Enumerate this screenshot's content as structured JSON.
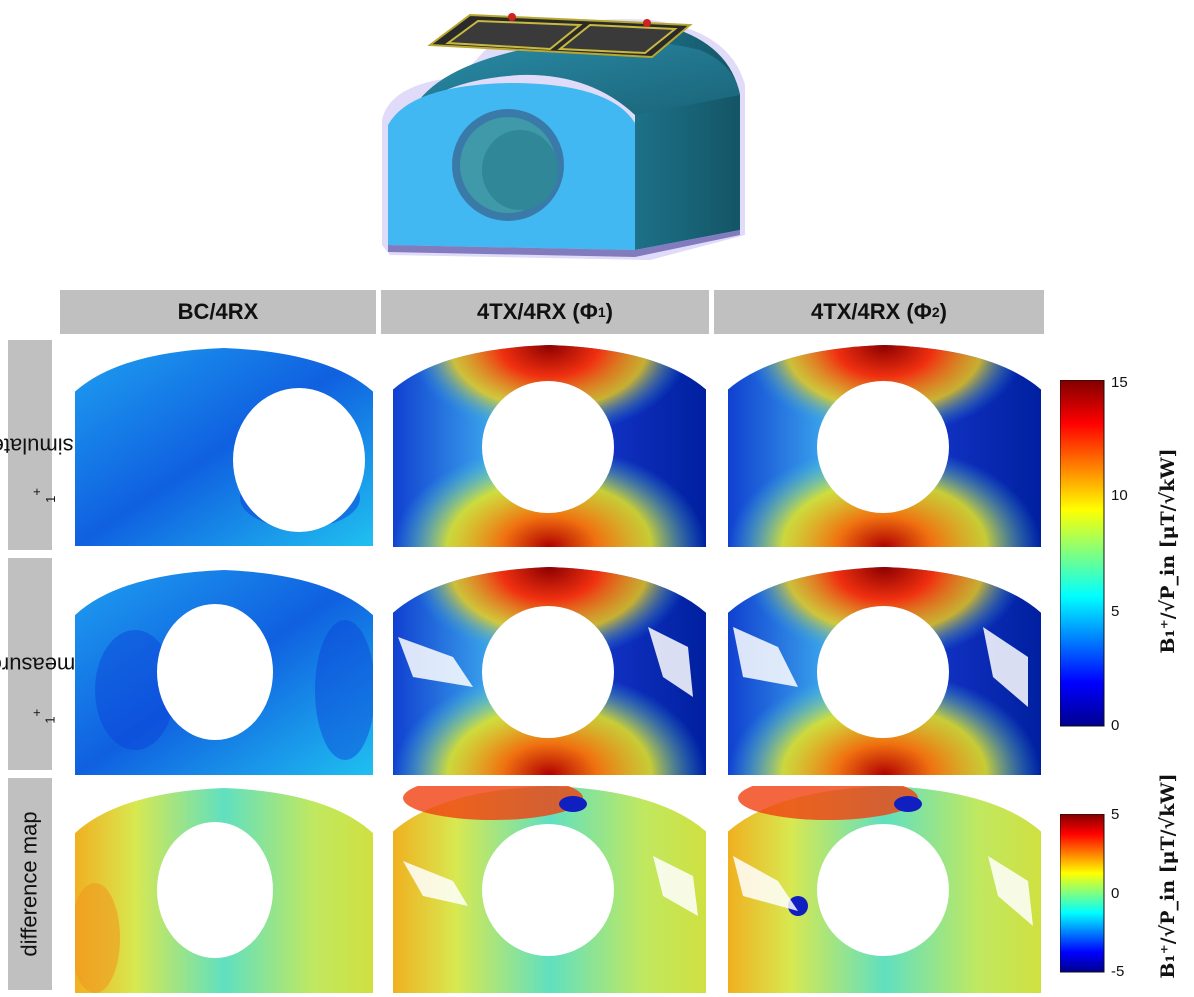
{
  "columns": [
    {
      "label": "BC/4RX",
      "sub": ""
    },
    {
      "label": "4TX/4RX (Φ",
      "sub": "1",
      "close": ")"
    },
    {
      "label": "4TX/4RX (Φ",
      "sub": "2",
      "close": ")"
    }
  ],
  "rows": [
    {
      "label": "simulated B",
      "sub": "1",
      "sup": "+"
    },
    {
      "label": "measured B",
      "sub": "1",
      "sup": "+"
    },
    {
      "label": "difference  map",
      "sub": "",
      "sup": ""
    }
  ],
  "colorbars": [
    {
      "ticks": [
        "15",
        "10",
        "5",
        "0"
      ],
      "label": "B₁⁺/√P_in  [μT/√kW]"
    },
    {
      "ticks": [
        "5",
        "0",
        "-5"
      ],
      "label": "B₁⁺/√P_in  [μT/√kW]"
    }
  ],
  "colors": {
    "header_bg": "#c0c0c0",
    "coil_blue": "#42b8f2",
    "coil_dark": "#1c6a80",
    "jet_low": "#00008f",
    "jet_high": "#800000"
  }
}
